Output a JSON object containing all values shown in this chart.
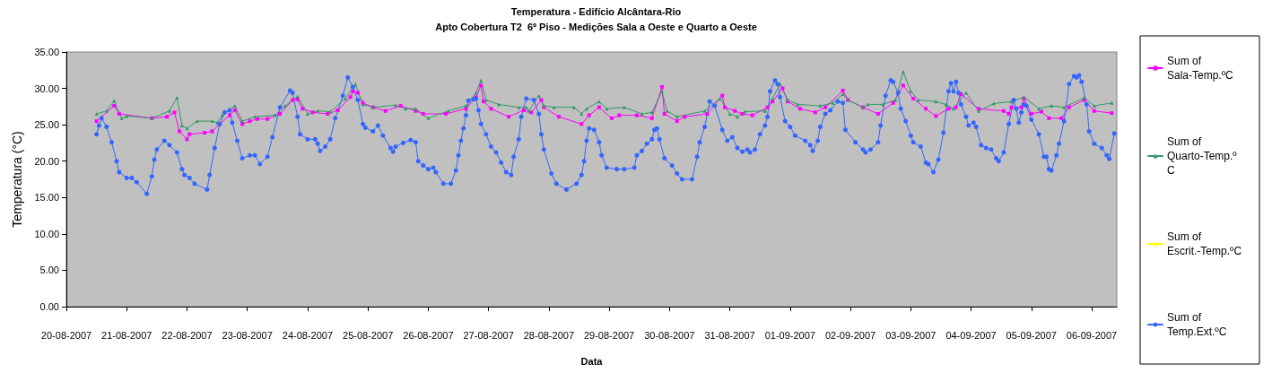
{
  "chart_data": {
    "type": "line",
    "title": "Temperatura - Edifício Alcântara-Rio",
    "subtitle": "Apto Cobertura T2  6º Piso - Medições Sala a Oeste e Quarto a Oeste",
    "xlabel": "Data",
    "ylabel": "Temperatura (°C)",
    "legend": "right",
    "xlim": [
      "2007-08-20T00:00",
      "2007-09-06T10:00"
    ],
    "xticks": [
      {
        "value": "2007-08-20T00:00",
        "label": "20-08-2007"
      },
      {
        "value": "2007-08-21T00:00",
        "label": "21-08-2007"
      },
      {
        "value": "2007-08-22T00:00",
        "label": "22-08-2007"
      },
      {
        "value": "2007-08-23T00:00",
        "label": "23-08-2007"
      },
      {
        "value": "2007-08-24T00:00",
        "label": "24-08-2007"
      },
      {
        "value": "2007-08-25T00:00",
        "label": "25-08-2007"
      },
      {
        "value": "2007-08-26T00:00",
        "label": "26-08-2007"
      },
      {
        "value": "2007-08-27T00:00",
        "label": "27-08-2007"
      },
      {
        "value": "2007-08-28T00:00",
        "label": "28-08-2007"
      },
      {
        "value": "2007-08-29T00:00",
        "label": "29-08-2007"
      },
      {
        "value": "2007-08-30T00:00",
        "label": "30-08-2007"
      },
      {
        "value": "2007-08-31T00:00",
        "label": "31-08-2007"
      },
      {
        "value": "2007-09-01T00:00",
        "label": "01-09-2007"
      },
      {
        "value": "2007-09-02T00:00",
        "label": "02-09-2007"
      },
      {
        "value": "2007-09-03T00:00",
        "label": "03-09-2007"
      },
      {
        "value": "2007-09-04T00:00",
        "label": "04-09-2007"
      },
      {
        "value": "2007-09-05T00:00",
        "label": "05-09-2007"
      },
      {
        "value": "2007-09-06T00:00",
        "label": "06-09-2007"
      }
    ],
    "ylim": [
      0,
      35
    ],
    "yticks": [
      {
        "value": 0,
        "label": "0.00"
      },
      {
        "value": 5,
        "label": "5.00"
      },
      {
        "value": 10,
        "label": "10.00"
      },
      {
        "value": 15,
        "label": "15.00"
      },
      {
        "value": 20,
        "label": "20.00"
      },
      {
        "value": 25,
        "label": "25.00"
      },
      {
        "value": 30,
        "label": "30.00"
      },
      {
        "value": 35,
        "label": "35.00"
      }
    ],
    "series": [
      {
        "name": "Sum of Sala-Temp.ºC",
        "color": "#ff00ff",
        "marker": "square",
        "x": [
          "2007-08-20T12:00",
          "2007-08-20T19:00",
          "2007-08-20T21:00",
          "2007-08-21T10:00",
          "2007-08-21T16:00",
          "2007-08-21T19:00",
          "2007-08-21T21:00",
          "2007-08-22T00:00",
          "2007-08-22T01:00",
          "2007-08-22T07:00",
          "2007-08-22T10:00",
          "2007-08-22T13:00",
          "2007-08-22T17:00",
          "2007-08-22T19:00",
          "2007-08-22T22:00",
          "2007-08-23T01:00",
          "2007-08-23T04:00",
          "2007-08-23T08:00",
          "2007-08-23T13:00",
          "2007-08-23T18:00",
          "2007-08-23T20:00",
          "2007-08-23T22:00",
          "2007-08-24T02:00",
          "2007-08-24T08:00",
          "2007-08-24T12:00",
          "2007-08-24T17:00",
          "2007-08-24T18:00",
          "2007-08-24T20:00",
          "2007-08-24T22:00",
          "2007-08-25T02:00",
          "2007-08-25T07:00",
          "2007-08-25T13:00",
          "2007-08-25T19:00",
          "2007-08-25T22:00",
          "2007-08-26T07:00",
          "2007-08-26T15:00",
          "2007-08-26T19:00",
          "2007-08-26T21:00",
          "2007-08-26T22:00",
          "2007-08-27T01:00",
          "2007-08-27T08:00",
          "2007-08-27T14:00",
          "2007-08-27T17:00",
          "2007-08-27T21:00",
          "2007-08-27T22:00",
          "2007-08-28T04:00",
          "2007-08-28T13:00",
          "2007-08-28T16:00",
          "2007-08-28T20:00",
          "2007-08-29T01:00",
          "2007-08-29T04:00",
          "2007-08-29T11:00",
          "2007-08-29T17:00",
          "2007-08-29T21:00",
          "2007-08-29T22:00",
          "2007-08-30T03:00",
          "2007-08-30T06:00",
          "2007-08-30T15:00",
          "2007-08-30T21:00",
          "2007-08-30T22:00",
          "2007-08-31T02:00",
          "2007-08-31T05:00",
          "2007-08-31T09:00",
          "2007-08-31T15:00",
          "2007-08-31T17:00",
          "2007-08-31T21:00",
          "2007-08-31T23:00",
          "2007-09-01T04:00",
          "2007-09-01T10:00",
          "2007-09-01T14:00",
          "2007-09-01T21:00",
          "2007-09-01T23:00",
          "2007-09-02T05:00",
          "2007-09-02T11:00",
          "2007-09-02T17:00",
          "2007-09-02T21:00",
          "2007-09-03T01:00",
          "2007-09-03T06:00",
          "2007-09-03T10:00",
          "2007-09-03T15:00",
          "2007-09-03T18:00",
          "2007-09-03T20:00",
          "2007-09-04T03:00",
          "2007-09-04T13:00",
          "2007-09-04T15:00",
          "2007-09-04T16:00",
          "2007-09-04T20:00",
          "2007-09-04T21:00",
          "2007-09-05T00:00",
          "2007-09-05T04:00",
          "2007-09-05T07:00",
          "2007-09-05T12:00",
          "2007-09-05T15:00",
          "2007-09-05T21:00",
          "2007-09-06T01:00",
          "2007-09-06T08:00"
        ],
        "values": [
          25.5,
          27.6,
          26.5,
          25.9,
          26.1,
          26.7,
          24.1,
          23.0,
          23.7,
          23.9,
          24.1,
          25.1,
          26.3,
          27.0,
          25.1,
          25.5,
          25.8,
          25.8,
          26.5,
          28.4,
          28.5,
          27.2,
          26.7,
          26.5,
          27.0,
          28.8,
          29.6,
          29.4,
          28.0,
          27.4,
          26.9,
          27.6,
          26.9,
          26.5,
          26.5,
          27.2,
          28.8,
          30.4,
          28.2,
          27.2,
          26.1,
          27.0,
          26.7,
          28.4,
          27.4,
          26.1,
          25.1,
          26.3,
          27.4,
          25.9,
          26.3,
          26.3,
          25.9,
          30.2,
          26.5,
          25.5,
          26.1,
          26.5,
          29.0,
          27.4,
          26.9,
          26.5,
          26.3,
          27.4,
          28.2,
          30.0,
          28.2,
          27.2,
          26.7,
          27.4,
          29.7,
          28.4,
          27.4,
          26.5,
          28.0,
          30.4,
          28.6,
          27.2,
          26.2,
          27.2,
          27.4,
          29.2,
          27.2,
          26.9,
          26.5,
          27.4,
          27.4,
          28.6,
          26.5,
          26.8,
          25.9,
          25.9,
          27.4,
          28.4,
          26.9,
          26.6
        ]
      },
      {
        "name": "Sum of Quarto-Temp.ºC",
        "color": "#339966",
        "marker": "triangle",
        "x": [
          "2007-08-20T12:00",
          "2007-08-20T16:00",
          "2007-08-20T19:00",
          "2007-08-20T22:00",
          "2007-08-21T00:00",
          "2007-08-21T10:00",
          "2007-08-21T17:00",
          "2007-08-21T20:00",
          "2007-08-21T22:00",
          "2007-08-22T00:00",
          "2007-08-22T04:00",
          "2007-08-22T10:00",
          "2007-08-22T12:00",
          "2007-08-22T14:00",
          "2007-08-22T19:00",
          "2007-08-22T22:00",
          "2007-08-23T03:00",
          "2007-08-23T11:00",
          "2007-08-23T15:00",
          "2007-08-23T20:00",
          "2007-08-24T00:00",
          "2007-08-24T04:00",
          "2007-08-24T09:00",
          "2007-08-24T15:00",
          "2007-08-24T19:00",
          "2007-08-24T22:00",
          "2007-08-25T02:00",
          "2007-08-25T11:00",
          "2007-08-25T15:00",
          "2007-08-25T19:00",
          "2007-08-26T00:00",
          "2007-08-26T08:00",
          "2007-08-26T15:00",
          "2007-08-26T19:00",
          "2007-08-26T21:00",
          "2007-08-26T23:00",
          "2007-08-27T04:00",
          "2007-08-27T12:00",
          "2007-08-27T15:00",
          "2007-08-27T16:00",
          "2007-08-27T20:00",
          "2007-08-27T22:00",
          "2007-08-28T02:00",
          "2007-08-28T10:00",
          "2007-08-28T13:00",
          "2007-08-28T15:00",
          "2007-08-28T20:00",
          "2007-08-28T23:00",
          "2007-08-29T06:00",
          "2007-08-29T13:00",
          "2007-08-29T17:00",
          "2007-08-29T21:00",
          "2007-08-29T23:00",
          "2007-08-30T03:00",
          "2007-08-30T14:00",
          "2007-08-30T20:00",
          "2007-08-31T00:00",
          "2007-08-31T03:00",
          "2007-08-31T06:00",
          "2007-08-31T14:00",
          "2007-08-31T17:00",
          "2007-08-31T20:00",
          "2007-08-31T23:00",
          "2007-09-01T03:00",
          "2007-09-01T12:00",
          "2007-09-01T17:00",
          "2007-09-01T21:00",
          "2007-09-01T23:00",
          "2007-09-02T05:00",
          "2007-09-02T07:00",
          "2007-09-02T13:00",
          "2007-09-02T18:00",
          "2007-09-02T21:00",
          "2007-09-03T00:00",
          "2007-09-03T03:00",
          "2007-09-03T10:00",
          "2007-09-03T14:00",
          "2007-09-03T17:00",
          "2007-09-03T22:00",
          "2007-09-04T03:00",
          "2007-09-04T09:00",
          "2007-09-04T16:00",
          "2007-09-04T21:00",
          "2007-09-05T03:00",
          "2007-09-05T08:00",
          "2007-09-05T13:00",
          "2007-09-05T21:00",
          "2007-09-06T01:00",
          "2007-09-06T08:00"
        ],
        "values": [
          26.5,
          26.9,
          28.3,
          25.9,
          26.2,
          25.9,
          26.9,
          28.7,
          24.9,
          24.5,
          25.5,
          25.5,
          25.3,
          26.3,
          27.6,
          25.5,
          26.1,
          26.3,
          27.6,
          28.9,
          26.5,
          26.9,
          26.8,
          28.6,
          30.6,
          27.8,
          27.4,
          27.7,
          27.2,
          27.2,
          25.9,
          26.9,
          27.6,
          29.4,
          31.1,
          28.4,
          27.8,
          27.4,
          27.4,
          26.9,
          29.0,
          27.6,
          27.4,
          27.4,
          26.5,
          27.2,
          28.2,
          27.2,
          27.4,
          26.5,
          26.7,
          29.6,
          26.9,
          26.1,
          26.9,
          28.6,
          26.5,
          26.1,
          26.8,
          26.9,
          28.6,
          30.6,
          28.4,
          27.8,
          27.6,
          28.0,
          29.2,
          28.4,
          27.4,
          27.8,
          27.8,
          28.4,
          32.3,
          29.6,
          28.4,
          28.2,
          27.8,
          27.2,
          29.4,
          26.9,
          27.9,
          28.2,
          28.8,
          27.2,
          27.6,
          27.4,
          28.7,
          27.6,
          28.0
        ]
      },
      {
        "name": "Sum of Escrit.-Temp.ºC",
        "color": "#ffff00",
        "marker": "triangle"
      },
      {
        "name": "Sum of Temp.Ext.ºC",
        "color": "#3366ff",
        "marker": "circle",
        "x": [
          "2007-08-20T12:00",
          "2007-08-20T13:00",
          "2007-08-20T14:00",
          "2007-08-20T16:00",
          "2007-08-20T18:00",
          "2007-08-20T20:00",
          "2007-08-20T21:00",
          "2007-08-21T00:00",
          "2007-08-21T02:00",
          "2007-08-21T04:00",
          "2007-08-21T08:00",
          "2007-08-21T10:00",
          "2007-08-21T11:00",
          "2007-08-21T12:00",
          "2007-08-21T15:00",
          "2007-08-21T17:00",
          "2007-08-21T20:00",
          "2007-08-21T22:00",
          "2007-08-21T23:00",
          "2007-08-22T01:00",
          "2007-08-22T03:00",
          "2007-08-22T08:00",
          "2007-08-22T09:00",
          "2007-08-22T11:00",
          "2007-08-22T13:00",
          "2007-08-22T15:00",
          "2007-08-22T17:00",
          "2007-08-22T18:00",
          "2007-08-22T20:00",
          "2007-08-22T22:00",
          "2007-08-23T01:00",
          "2007-08-23T03:00",
          "2007-08-23T05:00",
          "2007-08-23T08:00",
          "2007-08-23T10:00",
          "2007-08-23T13:00",
          "2007-08-23T17:00",
          "2007-08-23T18:00",
          "2007-08-23T20:00",
          "2007-08-23T21:00",
          "2007-08-24T00:00",
          "2007-08-24T03:00",
          "2007-08-24T04:00",
          "2007-08-24T05:00",
          "2007-08-24T07:00",
          "2007-08-24T09:00",
          "2007-08-24T11:00",
          "2007-08-24T14:00",
          "2007-08-24T16:00",
          "2007-08-24T18:00",
          "2007-08-24T20:00",
          "2007-08-24T22:00",
          "2007-08-24T23:00",
          "2007-08-25T02:00",
          "2007-08-25T04:00",
          "2007-08-25T06:00",
          "2007-08-25T09:00",
          "2007-08-25T10:00",
          "2007-08-25T11:00",
          "2007-08-25T14:00",
          "2007-08-25T17:00",
          "2007-08-25T19:00",
          "2007-08-25T20:00",
          "2007-08-25T22:00",
          "2007-08-26T00:00",
          "2007-08-26T02:00",
          "2007-08-26T03:00",
          "2007-08-26T06:00",
          "2007-08-26T09:00",
          "2007-08-26T11:00",
          "2007-08-26T12:00",
          "2007-08-26T13:00",
          "2007-08-26T14:00",
          "2007-08-26T15:00",
          "2007-08-26T16:00",
          "2007-08-26T18:00",
          "2007-08-26T19:00",
          "2007-08-26T20:00",
          "2007-08-26T21:00",
          "2007-08-26T23:00",
          "2007-08-27T01:00",
          "2007-08-27T03:00",
          "2007-08-27T05:00",
          "2007-08-27T07:00",
          "2007-08-27T09:00",
          "2007-08-27T10:00",
          "2007-08-27T12:00",
          "2007-08-27T13:00",
          "2007-08-27T15:00",
          "2007-08-27T18:00",
          "2007-08-27T20:00",
          "2007-08-27T21:00",
          "2007-08-27T22:00",
          "2007-08-28T01:00",
          "2007-08-28T03:00",
          "2007-08-28T07:00",
          "2007-08-28T11:00",
          "2007-08-28T13:00",
          "2007-08-28T14:00",
          "2007-08-28T15:00",
          "2007-08-28T16:00",
          "2007-08-28T18:00",
          "2007-08-28T20:00",
          "2007-08-28T21:00",
          "2007-08-28T23:00",
          "2007-08-29T03:00",
          "2007-08-29T06:00",
          "2007-08-29T10:00",
          "2007-08-29T11:00",
          "2007-08-29T13:00",
          "2007-08-29T15:00",
          "2007-08-29T17:00",
          "2007-08-29T18:00",
          "2007-08-29T19:00",
          "2007-08-29T20:00",
          "2007-08-29T22:00",
          "2007-08-30T01:00",
          "2007-08-30T03:00",
          "2007-08-30T05:00",
          "2007-08-30T09:00",
          "2007-08-30T11:00",
          "2007-08-30T12:00",
          "2007-08-30T14:00",
          "2007-08-30T16:00",
          "2007-08-30T18:00",
          "2007-08-30T21:00",
          "2007-08-30T23:00",
          "2007-08-31T01:00",
          "2007-08-31T03:00",
          "2007-08-31T05:00",
          "2007-08-31T07:00",
          "2007-08-31T08:00",
          "2007-08-31T10:00",
          "2007-08-31T12:00",
          "2007-08-31T14:00",
          "2007-08-31T15:00",
          "2007-08-31T16:00",
          "2007-08-31T18:00",
          "2007-08-31T19:00",
          "2007-08-31T20:00",
          "2007-08-31T22:00",
          "2007-09-01T00:00",
          "2007-09-01T02:00",
          "2007-09-01T06:00",
          "2007-09-01T08:00",
          "2007-09-01T09:00",
          "2007-09-01T11:00",
          "2007-09-01T12:00",
          "2007-09-01T14:00",
          "2007-09-01T16:00",
          "2007-09-01T19:00",
          "2007-09-01T21:00",
          "2007-09-01T22:00",
          "2007-09-02T02:00",
          "2007-09-02T05:00",
          "2007-09-02T06:00",
          "2007-09-02T08:00",
          "2007-09-02T11:00",
          "2007-09-02T12:00",
          "2007-09-02T14:00",
          "2007-09-02T16:00",
          "2007-09-02T17:00",
          "2007-09-02T19:00",
          "2007-09-02T20:00",
          "2007-09-02T22:00",
          "2007-09-03T00:00",
          "2007-09-03T01:00",
          "2007-09-03T04:00",
          "2007-09-03T06:00",
          "2007-09-03T07:00",
          "2007-09-03T09:00",
          "2007-09-03T11:00",
          "2007-09-03T13:00",
          "2007-09-03T15:00",
          "2007-09-03T16:00",
          "2007-09-03T17:00",
          "2007-09-03T18:00",
          "2007-09-03T19:00",
          "2007-09-03T20:00",
          "2007-09-03T22:00",
          "2007-09-03T23:00",
          "2007-09-04T01:00",
          "2007-09-04T02:00",
          "2007-09-04T04:00",
          "2007-09-04T06:00",
          "2007-09-04T08:00",
          "2007-09-04T10:00",
          "2007-09-04T11:00",
          "2007-09-04T13:00",
          "2007-09-04T15:00",
          "2007-09-04T17:00",
          "2007-09-04T18:00",
          "2007-09-04T19:00",
          "2007-09-04T20:00",
          "2007-09-04T21:00",
          "2007-09-04T22:00",
          "2007-09-05T00:00",
          "2007-09-05T03:00",
          "2007-09-05T05:00",
          "2007-09-05T06:00",
          "2007-09-05T07:00",
          "2007-09-05T08:00",
          "2007-09-05T10:00",
          "2007-09-05T11:00",
          "2007-09-05T13:00",
          "2007-09-05T15:00",
          "2007-09-05T17:00",
          "2007-09-05T18:00",
          "2007-09-05T19:00",
          "2007-09-05T20:00",
          "2007-09-05T22:00",
          "2007-09-05T23:00",
          "2007-09-06T01:00",
          "2007-09-06T04:00",
          "2007-09-06T06:00",
          "2007-09-06T07:00",
          "2007-09-06T09:00"
        ],
        "values": [
          23.7,
          24.9,
          25.9,
          24.7,
          22.6,
          20.0,
          18.5,
          17.7,
          17.7,
          17.1,
          15.5,
          17.9,
          20.2,
          21.6,
          22.8,
          22.2,
          21.2,
          18.9,
          18.1,
          17.7,
          16.9,
          16.1,
          18.1,
          21.8,
          25.1,
          26.7,
          27.0,
          25.3,
          22.8,
          20.4,
          20.8,
          20.8,
          19.6,
          20.6,
          23.3,
          27.4,
          29.7,
          29.4,
          26.1,
          23.7,
          23.0,
          23.0,
          22.4,
          21.4,
          22.0,
          23.0,
          25.9,
          29.0,
          31.5,
          30.2,
          28.4,
          25.1,
          24.6,
          24.1,
          24.9,
          23.5,
          21.8,
          21.3,
          22.0,
          22.5,
          22.9,
          22.6,
          20.0,
          19.4,
          18.9,
          19.1,
          18.5,
          16.9,
          16.9,
          18.7,
          20.8,
          22.8,
          24.5,
          26.3,
          28.3,
          28.5,
          28.6,
          27.0,
          25.1,
          23.7,
          22.0,
          21.2,
          19.8,
          18.5,
          18.1,
          20.6,
          23.0,
          26.1,
          28.6,
          28.4,
          26.5,
          23.7,
          21.6,
          18.3,
          16.9,
          16.1,
          16.9,
          18.1,
          20.0,
          22.8,
          24.5,
          24.3,
          22.6,
          20.8,
          19.1,
          18.9,
          18.9,
          19.1,
          20.8,
          21.4,
          22.4,
          23.0,
          24.3,
          24.5,
          23.0,
          20.4,
          19.4,
          18.3,
          17.5,
          17.5,
          20.6,
          22.6,
          24.7,
          28.2,
          27.6,
          24.3,
          22.8,
          23.3,
          21.8,
          21.3,
          21.6,
          21.2,
          21.6,
          23.7,
          24.9,
          26.1,
          29.6,
          31.1,
          30.6,
          28.8,
          25.5,
          24.7,
          23.5,
          22.8,
          22.2,
          21.4,
          22.8,
          24.7,
          26.5,
          27.0,
          28.2,
          28.0,
          24.3,
          22.6,
          21.6,
          21.2,
          21.6,
          22.6,
          24.9,
          29.0,
          31.1,
          30.9,
          29.4,
          27.2,
          25.5,
          23.5,
          22.6,
          22.0,
          19.8,
          19.6,
          18.5,
          20.2,
          23.9,
          29.6,
          30.7,
          29.6,
          30.9,
          29.4,
          27.8,
          26.1,
          24.9,
          25.3,
          24.7,
          22.2,
          21.8,
          21.6,
          20.4,
          20.0,
          21.2,
          25.1,
          28.4,
          27.2,
          25.3,
          26.7,
          27.8,
          27.6,
          25.7,
          23.7,
          20.6,
          20.6,
          18.9,
          18.7,
          20.8,
          22.4,
          25.5,
          30.6,
          31.7,
          31.5,
          31.8,
          30.9,
          27.8,
          24.1,
          22.4,
          21.8,
          20.8,
          20.3,
          23.8
        ]
      }
    ]
  }
}
